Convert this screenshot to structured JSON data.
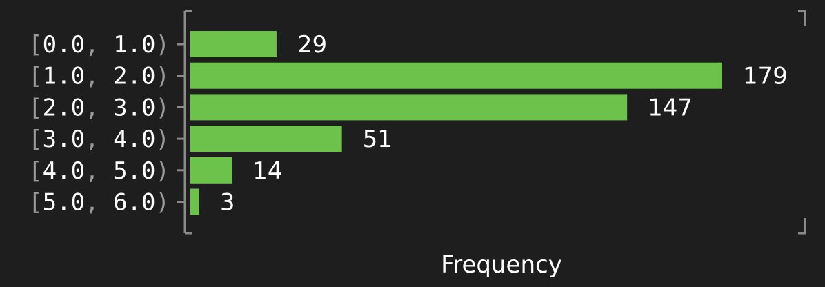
{
  "chart_data": {
    "type": "bar",
    "orientation": "horizontal",
    "categories": [
      "[0.0, 1.0)",
      "[1.0, 2.0)",
      "[2.0, 3.0)",
      "[3.0, 4.0)",
      "[4.0, 5.0)",
      "[5.0, 6.0)"
    ],
    "values": [
      29,
      179,
      147,
      51,
      14,
      3
    ],
    "data_labels": [
      "29",
      "179",
      "147",
      "51",
      "14",
      "3"
    ],
    "title": "",
    "xlabel": "Frequency",
    "ylabel": "",
    "xlim": [
      0,
      179
    ],
    "grid": false,
    "legend": "none",
    "colors": {
      "bar": "#6cc24a",
      "background": "#1e1e1e",
      "text": "#ffffff",
      "punctuation": "#9a9a9a",
      "axis": "#8a8a8a"
    }
  }
}
